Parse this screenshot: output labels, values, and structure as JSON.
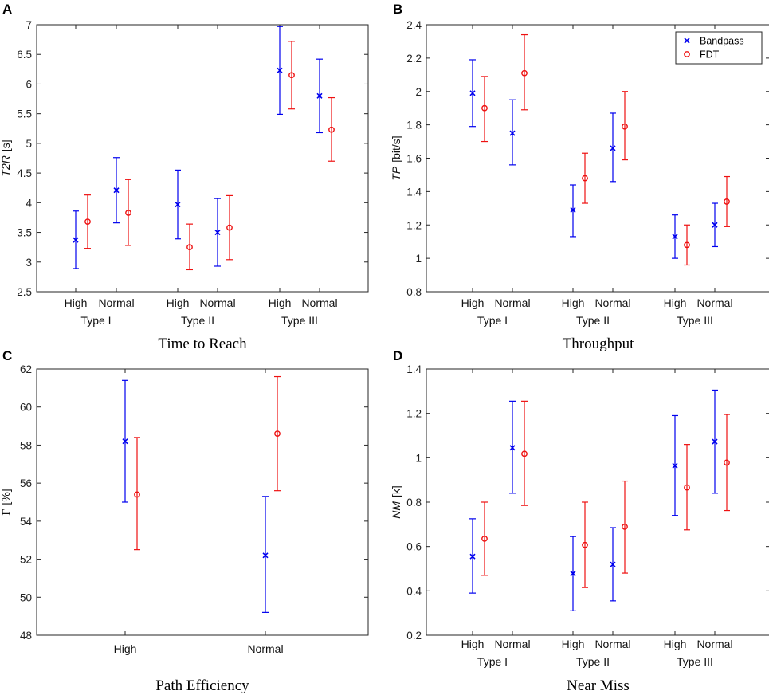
{
  "colors": {
    "bandpass": "#0000ee",
    "fdt": "#ee1111",
    "axis": "#262626"
  },
  "series_names": [
    "Bandpass",
    "FDT"
  ],
  "chart_data": [
    {
      "panel": "A",
      "type": "errorbar",
      "title": "Time to Reach",
      "ylabel_italic": "T2R",
      "ylabel_unit": "[s]",
      "ylim": [
        2.5,
        7
      ],
      "yticks": [
        2.5,
        3,
        3.5,
        4,
        4.5,
        5,
        5.5,
        6,
        6.5,
        7
      ],
      "ytick_labels": [
        "2.5",
        "3",
        "3.5",
        "4",
        "4.5",
        "5",
        "5.5",
        "6",
        "6.5",
        "7"
      ],
      "categories": [
        "High",
        "Normal",
        "High",
        "Normal",
        "High",
        "Normal"
      ],
      "groups": [
        "Type I",
        "Type II",
        "Type III"
      ],
      "legend": false,
      "series": [
        {
          "name": "Bandpass",
          "marker": "x",
          "values": [
            3.37,
            4.21,
            3.97,
            3.5,
            6.23,
            5.8
          ],
          "lower": [
            2.89,
            3.66,
            3.39,
            2.93,
            5.49,
            5.18
          ],
          "upper": [
            3.86,
            4.76,
            4.55,
            4.07,
            6.97,
            6.42
          ]
        },
        {
          "name": "FDT",
          "marker": "o",
          "values": [
            3.68,
            3.83,
            3.25,
            3.58,
            6.15,
            5.23
          ],
          "lower": [
            3.23,
            3.28,
            2.87,
            3.04,
            5.58,
            4.7
          ],
          "upper": [
            4.13,
            4.39,
            3.64,
            4.12,
            6.72,
            5.77
          ]
        }
      ]
    },
    {
      "panel": "B",
      "type": "errorbar",
      "title": "Throughput",
      "ylabel_italic": "TP",
      "ylabel_unit": "[bit/s]",
      "ylim": [
        0.8,
        2.4
      ],
      "yticks": [
        0.8,
        1,
        1.2,
        1.4,
        1.6,
        1.8,
        2,
        2.2,
        2.4
      ],
      "ytick_labels": [
        "0.8",
        "1",
        "1.2",
        "1.4",
        "1.6",
        "1.8",
        "2",
        "2.2",
        "2.4"
      ],
      "categories": [
        "High",
        "Normal",
        "High",
        "Normal",
        "High",
        "Normal"
      ],
      "groups": [
        "Type I",
        "Type II",
        "Type III"
      ],
      "legend": true,
      "series": [
        {
          "name": "Bandpass",
          "marker": "x",
          "values": [
            1.99,
            1.75,
            1.29,
            1.66,
            1.13,
            1.2
          ],
          "lower": [
            1.79,
            1.56,
            1.13,
            1.46,
            1.0,
            1.07
          ],
          "upper": [
            2.19,
            1.95,
            1.44,
            1.87,
            1.26,
            1.33
          ]
        },
        {
          "name": "FDT",
          "marker": "o",
          "values": [
            1.9,
            2.11,
            1.48,
            1.79,
            1.08,
            1.34
          ],
          "lower": [
            1.7,
            1.89,
            1.33,
            1.59,
            0.96,
            1.19
          ],
          "upper": [
            2.09,
            2.34,
            1.63,
            2.0,
            1.2,
            1.49
          ]
        }
      ]
    },
    {
      "panel": "C",
      "type": "errorbar",
      "title": "Path Efficiency",
      "ylabel_italic": "",
      "ylabel_symbol": "Γ",
      "ylabel_unit": "[%]",
      "ylim": [
        48,
        62
      ],
      "yticks": [
        48,
        50,
        52,
        54,
        56,
        58,
        60,
        62
      ],
      "ytick_labels": [
        "48",
        "50",
        "52",
        "54",
        "56",
        "58",
        "60",
        "62"
      ],
      "categories": [
        "High",
        "Normal"
      ],
      "groups": [],
      "legend": false,
      "series": [
        {
          "name": "Bandpass",
          "marker": "x",
          "values": [
            58.2,
            52.2
          ],
          "lower": [
            55.0,
            49.2
          ],
          "upper": [
            61.4,
            55.3
          ]
        },
        {
          "name": "FDT",
          "marker": "o",
          "values": [
            55.4,
            58.6
          ],
          "lower": [
            52.5,
            55.6
          ],
          "upper": [
            58.4,
            61.6
          ]
        }
      ]
    },
    {
      "panel": "D",
      "type": "errorbar",
      "title": "Near Miss",
      "ylabel_italic": "NM",
      "ylabel_unit": "[k]",
      "ylim": [
        0.2,
        1.4
      ],
      "yticks": [
        0.2,
        0.4,
        0.6,
        0.8,
        1,
        1.2,
        1.4
      ],
      "ytick_labels": [
        "0.2",
        "0.4",
        "0.6",
        "0.8",
        "1",
        "1.2",
        "1.4"
      ],
      "categories": [
        "High",
        "Normal",
        "High",
        "Normal",
        "High",
        "Normal"
      ],
      "groups": [
        "Type I",
        "Type II",
        "Type III"
      ],
      "legend": false,
      "series": [
        {
          "name": "Bandpass",
          "marker": "x",
          "values": [
            0.555,
            1.045,
            0.478,
            0.519,
            0.964,
            1.073
          ],
          "lower": [
            0.39,
            0.84,
            0.31,
            0.355,
            0.74,
            0.84
          ],
          "upper": [
            0.725,
            1.255,
            0.645,
            0.685,
            1.19,
            1.305
          ]
        },
        {
          "name": "FDT",
          "marker": "o",
          "values": [
            0.635,
            1.018,
            0.607,
            0.689,
            0.866,
            0.978
          ],
          "lower": [
            0.47,
            0.785,
            0.415,
            0.48,
            0.675,
            0.762
          ],
          "upper": [
            0.8,
            1.255,
            0.8,
            0.895,
            1.06,
            1.195
          ]
        }
      ]
    }
  ]
}
